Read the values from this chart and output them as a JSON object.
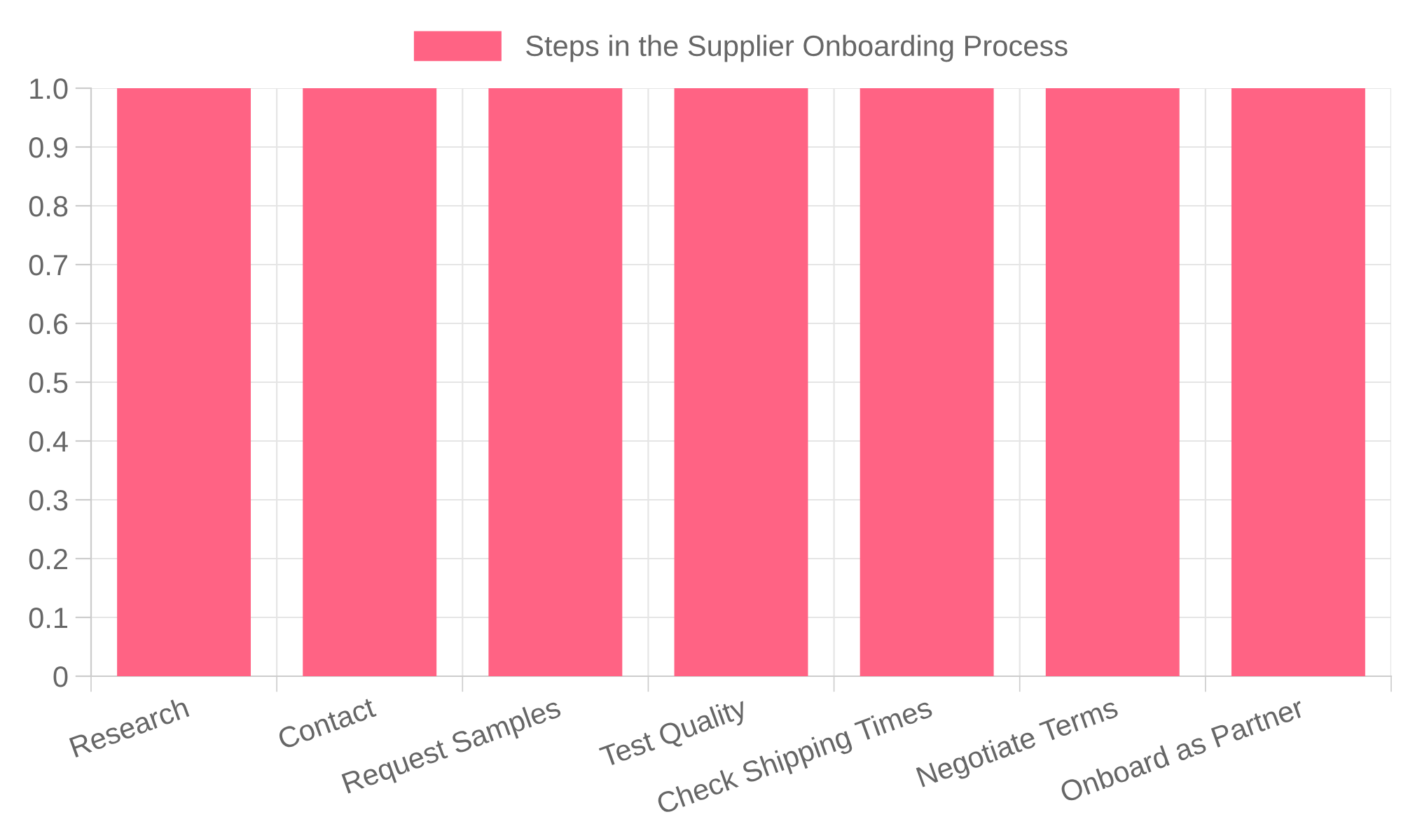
{
  "chart_data": {
    "type": "bar",
    "categories": [
      "Research",
      "Contact",
      "Request Samples",
      "Test Quality",
      "Check Shipping Times",
      "Negotiate Terms",
      "Onboard as Partner"
    ],
    "series": [
      {
        "name": "Steps in the Supplier Onboarding Process",
        "color": "#ff6384",
        "values": [
          1,
          1,
          1,
          1,
          1,
          1,
          1
        ]
      }
    ],
    "ylim": [
      0,
      1
    ],
    "yticks": [
      0,
      0.1,
      0.2,
      0.3,
      0.4,
      0.5,
      0.6,
      0.7,
      0.8,
      0.9,
      {
        "value": 1,
        "label": "1.0"
      }
    ],
    "grid": true,
    "legend": "top"
  }
}
